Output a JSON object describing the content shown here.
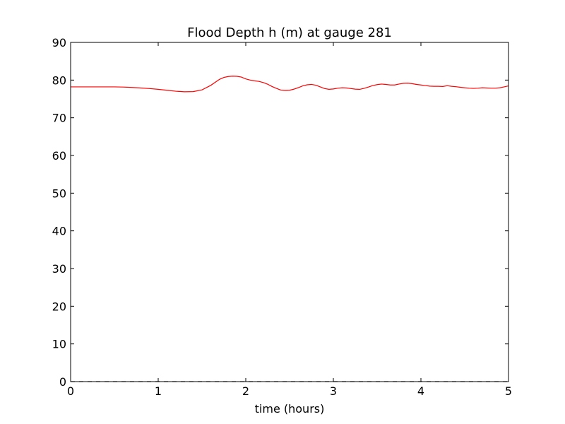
{
  "chart_data": {
    "type": "line",
    "title": "Flood Depth h (m) at gauge 281",
    "xlabel": "time (hours)",
    "ylabel": "",
    "xlim": [
      0,
      5
    ],
    "ylim": [
      0,
      90
    ],
    "xticks": [
      "0",
      "1",
      "2",
      "3",
      "4",
      "5"
    ],
    "yticks": [
      "0",
      "10",
      "20",
      "30",
      "40",
      "50",
      "60",
      "70",
      "80",
      "90"
    ],
    "grid": false,
    "legend": "none",
    "series": [
      {
        "color": "#ff0000",
        "style": "solid",
        "x": [
          0,
          0.1,
          0.2,
          0.3,
          0.4,
          0.5,
          0.6,
          0.7,
          0.8,
          0.9,
          1.0,
          1.1,
          1.2,
          1.3,
          1.4,
          1.5,
          1.6,
          1.7,
          1.75,
          1.8,
          1.85,
          1.9,
          1.95,
          2.0,
          2.05,
          2.1,
          2.15,
          2.2,
          2.25,
          2.3,
          2.35,
          2.4,
          2.45,
          2.5,
          2.55,
          2.6,
          2.65,
          2.7,
          2.75,
          2.8,
          2.85,
          2.9,
          2.95,
          3.0,
          3.05,
          3.1,
          3.15,
          3.2,
          3.25,
          3.3,
          3.35,
          3.4,
          3.45,
          3.5,
          3.55,
          3.6,
          3.65,
          3.7,
          3.75,
          3.8,
          3.85,
          3.9,
          3.95,
          4.0,
          4.05,
          4.1,
          4.15,
          4.2,
          4.25,
          4.3,
          4.35,
          4.4,
          4.45,
          4.5,
          4.55,
          4.6,
          4.65,
          4.7,
          4.75,
          4.8,
          4.85,
          4.9,
          4.95,
          5.0
        ],
        "values": [
          78.2,
          78.2,
          78.2,
          78.2,
          78.2,
          78.2,
          78.15,
          78.05,
          77.9,
          77.75,
          77.55,
          77.3,
          77.05,
          76.9,
          76.95,
          77.4,
          78.6,
          80.2,
          80.7,
          80.95,
          81.05,
          81.0,
          80.8,
          80.3,
          80.0,
          79.8,
          79.65,
          79.35,
          78.9,
          78.3,
          77.8,
          77.35,
          77.25,
          77.3,
          77.6,
          78.0,
          78.45,
          78.75,
          78.85,
          78.65,
          78.2,
          77.75,
          77.55,
          77.65,
          77.85,
          77.95,
          77.9,
          77.75,
          77.6,
          77.55,
          77.8,
          78.15,
          78.55,
          78.8,
          78.95,
          78.85,
          78.7,
          78.7,
          78.95,
          79.15,
          79.2,
          79.05,
          78.85,
          78.7,
          78.55,
          78.4,
          78.35,
          78.35,
          78.3,
          78.5,
          78.35,
          78.25,
          78.1,
          77.95,
          77.85,
          77.8,
          77.85,
          77.95,
          77.9,
          77.85,
          77.85,
          77.95,
          78.2,
          78.45
        ]
      },
      {
        "color": "#000000",
        "style": "dashed",
        "x": [
          0,
          5
        ],
        "values": [
          0,
          0
        ]
      }
    ]
  }
}
